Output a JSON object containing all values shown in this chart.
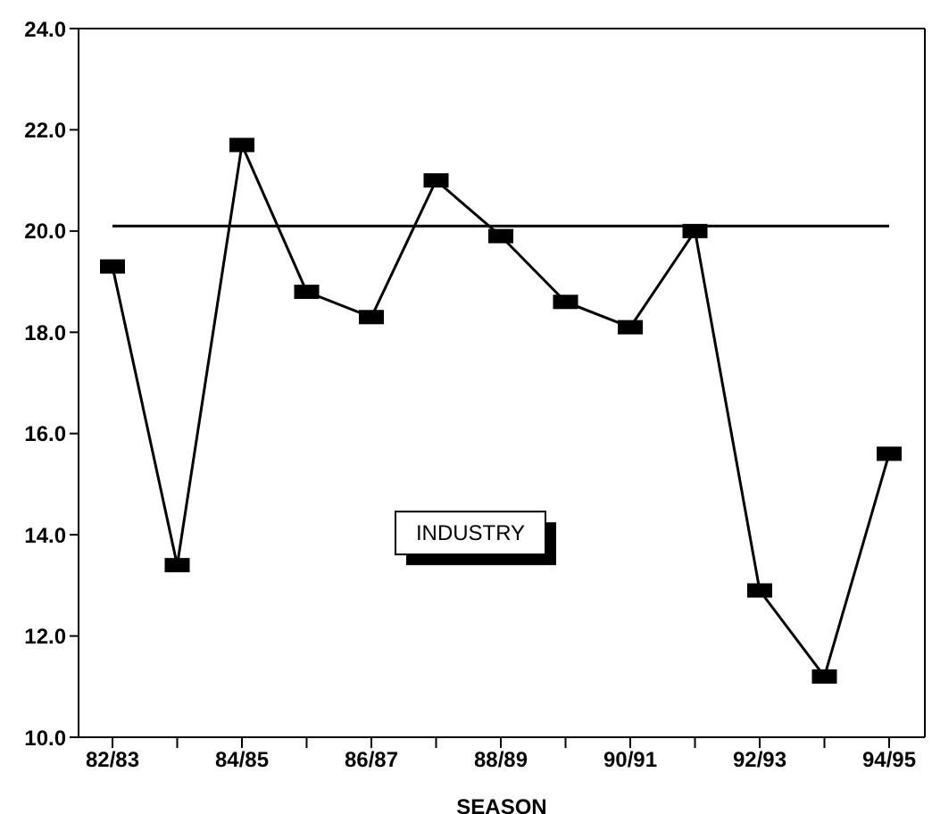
{
  "chart_data": {
    "type": "line",
    "xlabel": "SEASON",
    "categories": [
      "82/83",
      null,
      "84/85",
      null,
      "86/87",
      null,
      "88/89",
      null,
      "90/91",
      null,
      "92/93",
      null,
      "94/95"
    ],
    "series": [
      {
        "color": "#000000",
        "values": [
          19.3,
          13.4,
          21.7,
          18.8,
          18.3,
          21.0,
          19.9,
          18.6,
          18.1,
          20.0,
          12.9,
          11.2,
          15.6
        ]
      }
    ],
    "ylim": [
      10,
      24
    ],
    "yticks": [
      {
        "value": 10,
        "label": "10.0"
      },
      {
        "value": 12,
        "label": "12.0"
      },
      {
        "value": 14,
        "label": "14.0"
      },
      {
        "value": 16,
        "label": "16.0"
      },
      {
        "value": 18,
        "label": "18.0"
      },
      {
        "value": 20,
        "label": "20.0"
      },
      {
        "value": 22,
        "label": "22.0"
      },
      {
        "value": 24,
        "label": "24.0"
      }
    ],
    "ref_lines": [
      {
        "axis": "y",
        "value": 20.1,
        "label": "INDUSTRY",
        "color": "#000000"
      }
    ],
    "marker": "square",
    "line_style": "solid"
  }
}
